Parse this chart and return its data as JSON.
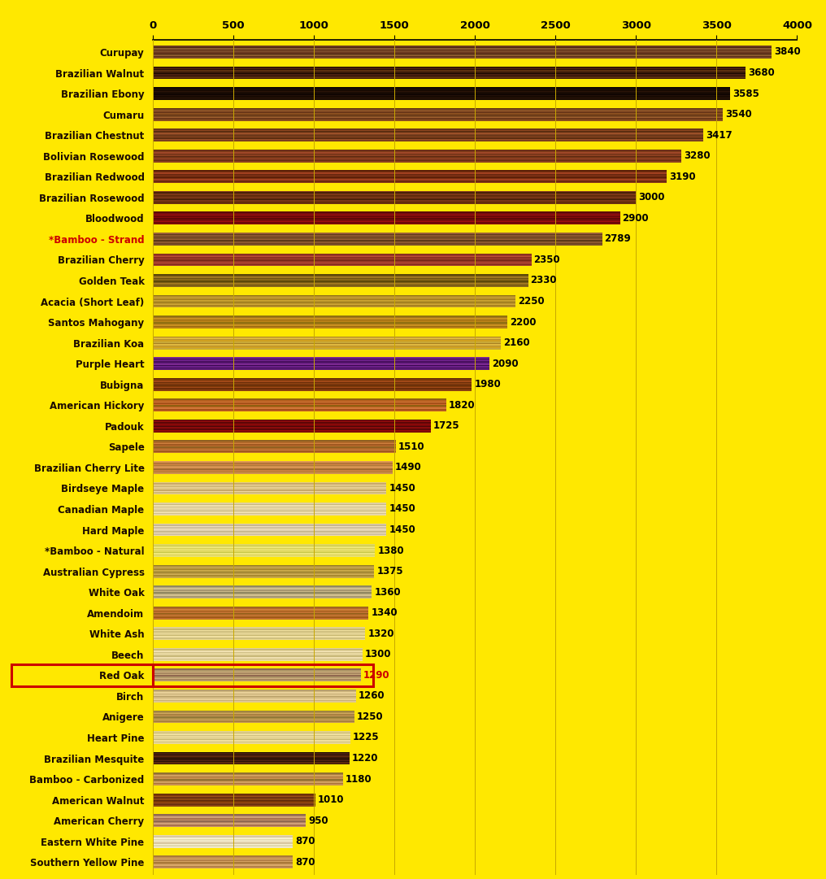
{
  "species": [
    "Curupay",
    "Brazilian Walnut",
    "Brazilian Ebony",
    "Cumaru",
    "Brazilian Chestnut",
    "Bolivian Rosewood",
    "Brazilian Redwood",
    "Brazilian Rosewood",
    "Bloodwood",
    "*Bamboo - Strand",
    "Brazilian Cherry",
    "Golden Teak",
    "Acacia (Short Leaf)",
    "Santos Mahogany",
    "Brazilian Koa",
    "Purple Heart",
    "Bubigna",
    "American Hickory",
    "Padouk",
    "Sapele",
    "Brazilian Cherry Lite",
    "Birdseye Maple",
    "Canadian Maple",
    "Hard Maple",
    "*Bamboo - Natural",
    "Australian Cypress",
    "White Oak",
    "Amendoim",
    "White Ash",
    "Beech",
    "Red Oak",
    "Birch",
    "Anigere",
    "Heart Pine",
    "Brazilian Mesquite",
    "Bamboo - Carbonized",
    "American Walnut",
    "American Cherry",
    "Eastern White Pine",
    "Southern Yellow Pine"
  ],
  "values": [
    3840,
    3680,
    3585,
    3540,
    3417,
    3280,
    3190,
    3000,
    2900,
    2789,
    2350,
    2330,
    2250,
    2200,
    2160,
    2090,
    1980,
    1820,
    1725,
    1510,
    1490,
    1450,
    1450,
    1450,
    1380,
    1375,
    1360,
    1340,
    1320,
    1300,
    1290,
    1260,
    1250,
    1225,
    1220,
    1180,
    1010,
    950,
    870,
    870
  ],
  "wood_colors": [
    [
      "#7B4A2A",
      "#5C3018",
      "#8B5A30",
      "#4A2810",
      "#6B3820"
    ],
    [
      "#3A1A08",
      "#5C3010",
      "#2A1008",
      "#4A2010",
      "#1A0800"
    ],
    [
      "#1A0C04",
      "#2A1408",
      "#180A02",
      "#221008",
      "#100602"
    ],
    [
      "#8B5020",
      "#6B3818",
      "#A06030",
      "#7B4820",
      "#5C3010"
    ],
    [
      "#7B4020",
      "#9B5028",
      "#5C2E10",
      "#8B4520",
      "#6B3818"
    ],
    [
      "#8B4020",
      "#6B2E14",
      "#A04828",
      "#7B3818",
      "#5C2810"
    ],
    [
      "#8B3818",
      "#6B2810",
      "#A04020",
      "#7B3010",
      "#5C2008"
    ],
    [
      "#6B3010",
      "#5C2808",
      "#7B3818",
      "#4A2008",
      "#8B4020"
    ],
    [
      "#8B0A0A",
      "#6B0808",
      "#A01010",
      "#7B0C0C",
      "#5C0808"
    ],
    [
      "#7B5028",
      "#6B4020",
      "#8B5830",
      "#5C3818",
      "#9B6038"
    ],
    [
      "#A84030",
      "#8B2E20",
      "#C05038",
      "#9B3828",
      "#7B2818"
    ],
    [
      "#8B6818",
      "#6B5010",
      "#A07820",
      "#7B5C14",
      "#5C4808"
    ],
    [
      "#C8A030",
      "#A88020",
      "#D0A838",
      "#B89028",
      "#907018"
    ],
    [
      "#B88018",
      "#9B6810",
      "#C89020",
      "#A87818",
      "#907010"
    ],
    [
      "#C8A838",
      "#D0A020",
      "#B89030",
      "#E0B840",
      "#A88020"
    ],
    [
      "#5C1878",
      "#4A1060",
      "#6B2088",
      "#3A0850",
      "#7B2890"
    ],
    [
      "#8B4010",
      "#6B2E08",
      "#A04818",
      "#7B3808",
      "#5C2808"
    ],
    [
      "#C86828",
      "#A85018",
      "#D07838",
      "#B86020",
      "#906010"
    ],
    [
      "#7B0808",
      "#9B0A0A",
      "#5C0606",
      "#8B0C0C",
      "#4A0808"
    ],
    [
      "#C07030",
      "#A05820",
      "#D08040",
      "#B06828",
      "#906020"
    ],
    [
      "#D09050",
      "#B07838",
      "#C88040",
      "#A06830",
      "#E09858"
    ],
    [
      "#E8D098",
      "#D0B878",
      "#F0D8A0",
      "#C8A868",
      "#E0C888"
    ],
    [
      "#E8D8A8",
      "#D0C090",
      "#F0E0B0",
      "#C8B880",
      "#E0D0A0"
    ],
    [
      "#E8D8B8",
      "#D0C0A0",
      "#F0E0C0",
      "#C8B890",
      "#E0D0B0"
    ],
    [
      "#E8E070",
      "#D8D058",
      "#F0E878",
      "#C8C848",
      "#E0D860"
    ],
    [
      "#C8A848",
      "#A88830",
      "#D0B058",
      "#B89840",
      "#907828"
    ],
    [
      "#C8B888",
      "#A89870",
      "#D0C090",
      "#B8A878",
      "#908860"
    ],
    [
      "#C07030",
      "#A05818",
      "#D08038",
      "#B06828",
      "#906018"
    ],
    [
      "#E8D898",
      "#D0C080",
      "#F0E0A0",
      "#C8B870",
      "#E0D090"
    ],
    [
      "#E8D8A0",
      "#D0C088",
      "#F0E0B0",
      "#C8B878",
      "#E0D098"
    ],
    [
      "#C8A878",
      "#A88860",
      "#D0B080",
      "#B09868",
      "#906850"
    ],
    [
      "#E0C890",
      "#C8B078",
      "#E8D098",
      "#D0B880",
      "#B8A068"
    ],
    [
      "#C89858",
      "#A88040",
      "#D0A860",
      "#B09048",
      "#907838"
    ],
    [
      "#E8D898",
      "#D0C080",
      "#F0E0A0",
      "#C8B870",
      "#E0D090"
    ],
    [
      "#3A1A08",
      "#5C2810",
      "#2A1006",
      "#4A2010",
      "#1A0804"
    ],
    [
      "#C89050",
      "#A87038",
      "#D0A060",
      "#B08040",
      "#907030"
    ],
    [
      "#8B4513",
      "#6B3010",
      "#A05018",
      "#7B3808",
      "#5C2808"
    ],
    [
      "#C8906A",
      "#A87050",
      "#D0A078",
      "#B08060",
      "#906850"
    ],
    [
      "#F0E8C8",
      "#E0D8B0",
      "#F8F0D0",
      "#D8C8A0",
      "#E8D8B8"
    ],
    [
      "#D4A060",
      "#B48048",
      "#D8A868",
      "#C49050",
      "#A87838"
    ]
  ],
  "red_oak_index": 30,
  "background_color": "#FFE800",
  "bar_height": 0.62,
  "xlim": [
    0,
    4000
  ],
  "xticks": [
    0,
    500,
    1000,
    1500,
    2000,
    2500,
    3000,
    3500,
    4000
  ],
  "value_color": "#000000",
  "red_oak_value_color": "#CC0000",
  "red_oak_label_color": "#CC0000",
  "vline_color": "#C8A800",
  "label_fontsize": 8.5,
  "value_fontsize": 8.5
}
